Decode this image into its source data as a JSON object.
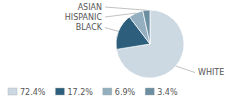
{
  "chart_data": {
    "type": "pie",
    "categories": [
      "WHITE",
      "BLACK",
      "HISPANIC",
      "ASIAN"
    ],
    "values": [
      72.4,
      17.2,
      6.9,
      3.4
    ],
    "value_labels": [
      "72.4%",
      "17.2%",
      "6.9%",
      "3.4%"
    ],
    "colors": [
      "#ccd9e3",
      "#2d5f7c",
      "#93afc0",
      "#6b8fa0"
    ],
    "legend": "bottom"
  }
}
